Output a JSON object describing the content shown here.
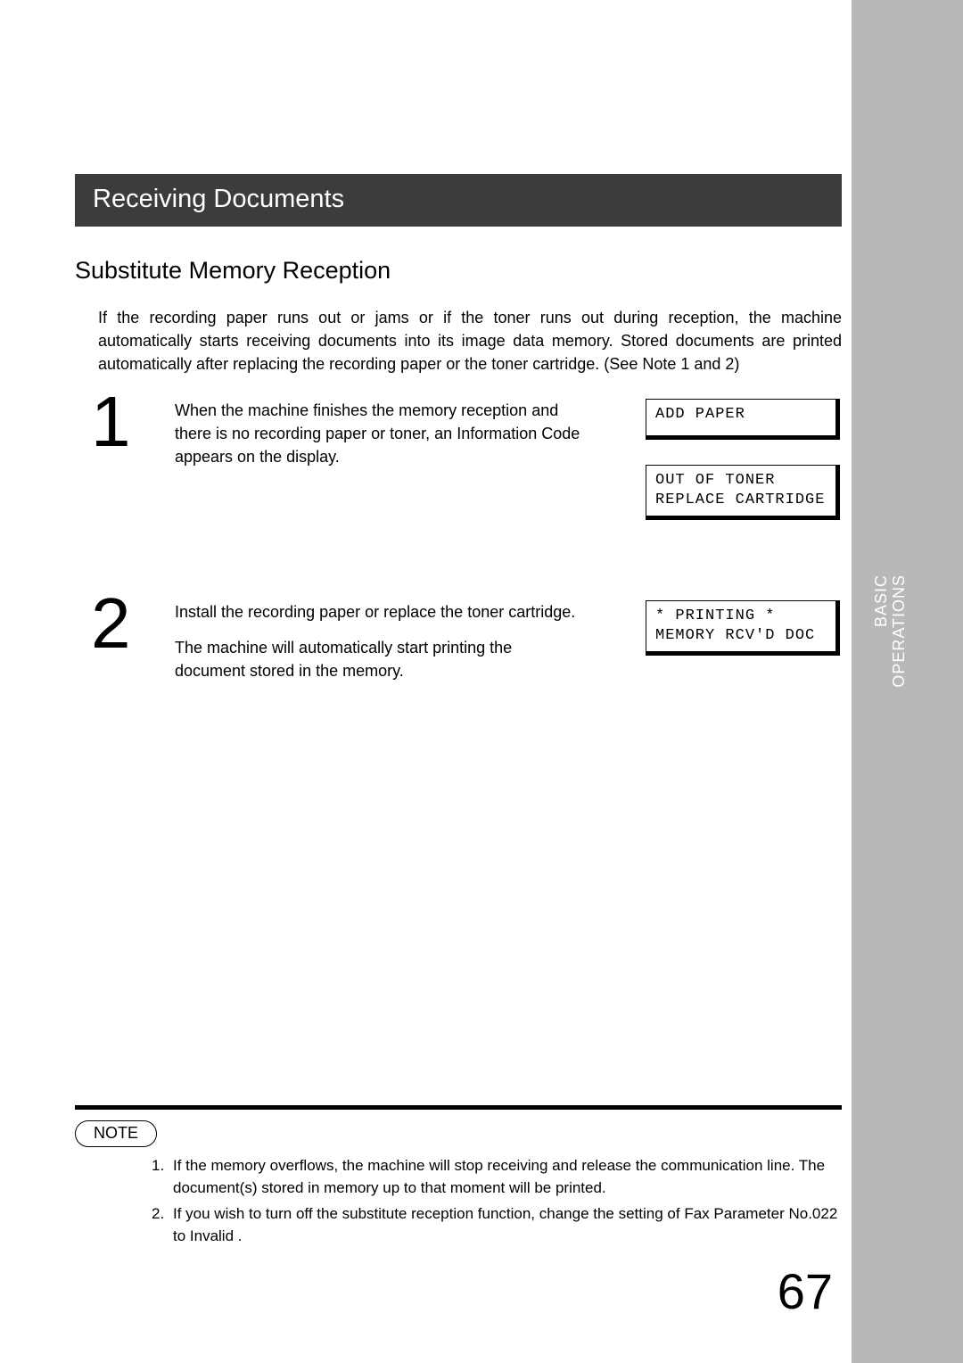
{
  "colors": {
    "page_bg": "#ffffff",
    "sidebar_bg": "#b8b8b8",
    "sidebar_text": "#ffffff",
    "section_bar_bg": "#3c3c3c",
    "section_bar_text": "#ffffff",
    "text": "#000000",
    "rule": "#000000",
    "lcd_border": "#000000"
  },
  "typography": {
    "body_fontsize": 18,
    "subheading_fontsize": 27,
    "section_fontsize": 29,
    "step_num_fontsize": 80,
    "note_fontsize": 17,
    "side_fontsize": 18,
    "page_num_fontsize": 56,
    "mono_family": "Courier New"
  },
  "sidebar": {
    "line1": "BASIC",
    "line2": "OPERATIONS"
  },
  "section_title": "Receiving Documents",
  "subheading": "Substitute Memory Reception",
  "intro": "If the recording paper runs out or jams or if the toner runs out during reception, the machine automatically starts receiving documents into its image data memory.  Stored documents are printed automatically after replacing the recording paper or the toner cartridge. (See Note 1 and 2)",
  "steps": [
    {
      "number": "1",
      "text": [
        "When the machine finishes the memory reception and there is no recording paper or toner, an Information Code appears on the display."
      ],
      "displays": [
        "ADD PAPER",
        "OUT OF TONER\nREPLACE CARTRIDGE"
      ]
    },
    {
      "number": "2",
      "text": [
        "Install the recording paper or replace the toner cartridge.",
        "The machine will automatically start printing the document stored in the memory."
      ],
      "displays": [
        "* PRINTING *\nMEMORY RCV'D DOC"
      ]
    }
  ],
  "note_label": "NOTE",
  "notes": [
    {
      "num": "1.",
      "text": "If the memory overflows, the machine will stop receiving and release the communication line.  The document(s) stored in memory up to that moment will be printed."
    },
    {
      "num": "2.",
      "text": "If you wish to turn off the substitute reception function, change the setting of Fax Parameter No.022 to  Invalid ."
    }
  ],
  "page_number": "67"
}
